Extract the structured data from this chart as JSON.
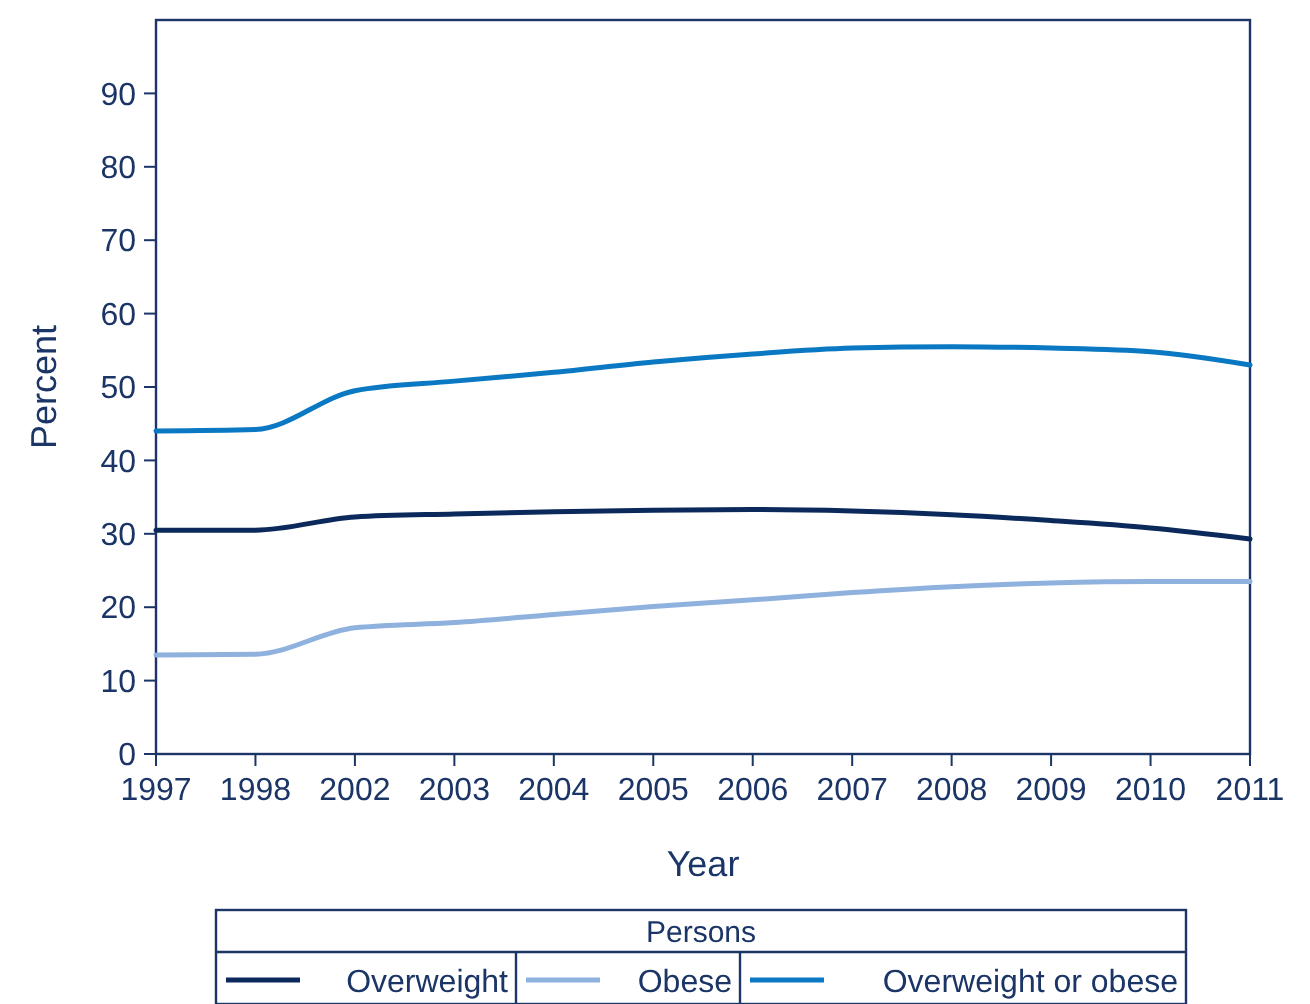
{
  "chart_data": {
    "type": "line",
    "xlabel": "Year",
    "ylabel": "Percent",
    "legend_title": "Persons",
    "legend": "bottom",
    "grid": false,
    "marker": "none",
    "line_style": "solid",
    "categories": [
      "1997",
      "1998",
      "2002",
      "2003",
      "2004",
      "2005",
      "2006",
      "2007",
      "2008",
      "2009",
      "2010",
      "2011"
    ],
    "ylim": [
      0,
      100
    ],
    "yticks": [
      0,
      10,
      20,
      30,
      40,
      50,
      60,
      70,
      80,
      90
    ],
    "series": [
      {
        "name": "Overweight",
        "color": "#0b2a5b",
        "values": [
          30.5,
          30.5,
          32.3,
          32.7,
          33,
          33.2,
          33.3,
          33.1,
          32.6,
          31.8,
          30.8,
          29.3
        ]
      },
      {
        "name": "Obese",
        "color": "#8fb1de",
        "values": [
          13.5,
          13.6,
          17.2,
          17.9,
          19,
          20.1,
          21,
          22,
          22.8,
          23.3,
          23.5,
          23.5
        ]
      },
      {
        "name": "Overweight or obese",
        "color": "#0a78c2",
        "values": [
          44,
          44.2,
          49.5,
          50.8,
          52,
          53.4,
          54.5,
          55.3,
          55.5,
          55.3,
          54.8,
          53
        ]
      }
    ]
  }
}
